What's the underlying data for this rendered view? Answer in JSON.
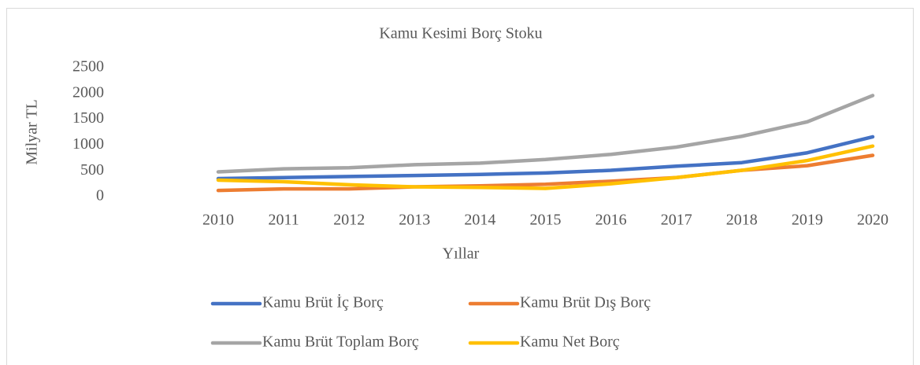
{
  "chart_data": {
    "type": "line",
    "title": "Kamu Kesimi Borç Stoku",
    "x_label": "Yıllar",
    "y_label": "Milyar TL",
    "categories": [
      "2010",
      "2011",
      "2012",
      "2013",
      "2014",
      "2015",
      "2016",
      "2017",
      "2018",
      "2019",
      "2020"
    ],
    "series": [
      {
        "name": "Kamu Brüt İç Borç",
        "color": "#4472c4",
        "values": [
          350,
          370,
          390,
          410,
          430,
          460,
          510,
          590,
          660,
          850,
          1160
        ]
      },
      {
        "name": "Kamu Brüt Dış Borç",
        "color": "#ed7d31",
        "values": [
          120,
          150,
          150,
          190,
          210,
          240,
          300,
          370,
          510,
          600,
          800
        ]
      },
      {
        "name": "Kamu Brüt Toplam Borç",
        "color": "#a5a5a5",
        "values": [
          480,
          540,
          560,
          620,
          650,
          720,
          820,
          960,
          1170,
          1450,
          1960
        ]
      },
      {
        "name": "Kamu Net Borç",
        "color": "#ffc000",
        "values": [
          320,
          290,
          230,
          190,
          180,
          160,
          250,
          370,
          510,
          700,
          980
        ]
      }
    ],
    "ylim": [
      0,
      2500
    ],
    "yticks": [
      0,
      500,
      1000,
      1500,
      2000,
      2500
    ],
    "grid": false,
    "legend": "bottom"
  }
}
